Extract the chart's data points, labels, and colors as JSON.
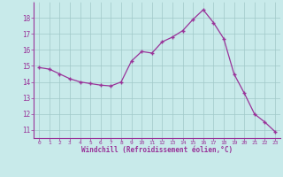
{
  "x": [
    0,
    1,
    2,
    3,
    4,
    5,
    6,
    7,
    8,
    9,
    10,
    11,
    12,
    13,
    14,
    15,
    16,
    17,
    18,
    19,
    20,
    21,
    22,
    23
  ],
  "y": [
    14.9,
    14.8,
    14.5,
    14.2,
    14.0,
    13.9,
    13.8,
    13.75,
    14.0,
    15.3,
    15.9,
    15.8,
    16.5,
    16.8,
    17.2,
    17.9,
    18.5,
    17.7,
    16.7,
    14.5,
    13.3,
    12.0,
    11.5,
    10.9
  ],
  "line_color": "#993399",
  "marker": "+",
  "marker_size": 4,
  "bg_color": "#c8eaea",
  "grid_color": "#a0c8c8",
  "spine_color": "#993399",
  "tick_color": "#993399",
  "label_color": "#993399",
  "xlabel": "Windchill (Refroidissement éolien,°C)",
  "xlim": [
    -0.5,
    23.5
  ],
  "ylim": [
    10.5,
    19.0
  ],
  "yticks": [
    11,
    12,
    13,
    14,
    15,
    16,
    17,
    18
  ],
  "xticks": [
    0,
    1,
    2,
    3,
    4,
    5,
    6,
    7,
    8,
    9,
    10,
    11,
    12,
    13,
    14,
    15,
    16,
    17,
    18,
    19,
    20,
    21,
    22,
    23
  ]
}
